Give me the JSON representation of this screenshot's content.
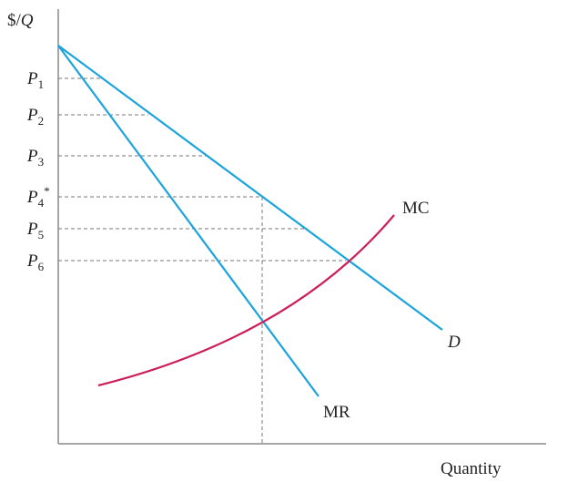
{
  "axes": {
    "y_label": {
      "prefix": "$/",
      "var": "Q"
    },
    "x_label": "Quantity"
  },
  "price_labels": [
    {
      "letter": "P",
      "sub": "1"
    },
    {
      "letter": "P",
      "sub": "2"
    },
    {
      "letter": "P",
      "sub": "3"
    },
    {
      "letter": "P",
      "sub": "4",
      "sup": "*"
    },
    {
      "letter": "P",
      "sub": "5"
    },
    {
      "letter": "P",
      "sub": "6"
    }
  ],
  "curves": {
    "mc": "MC",
    "demand": "D",
    "mr": "MR"
  }
}
